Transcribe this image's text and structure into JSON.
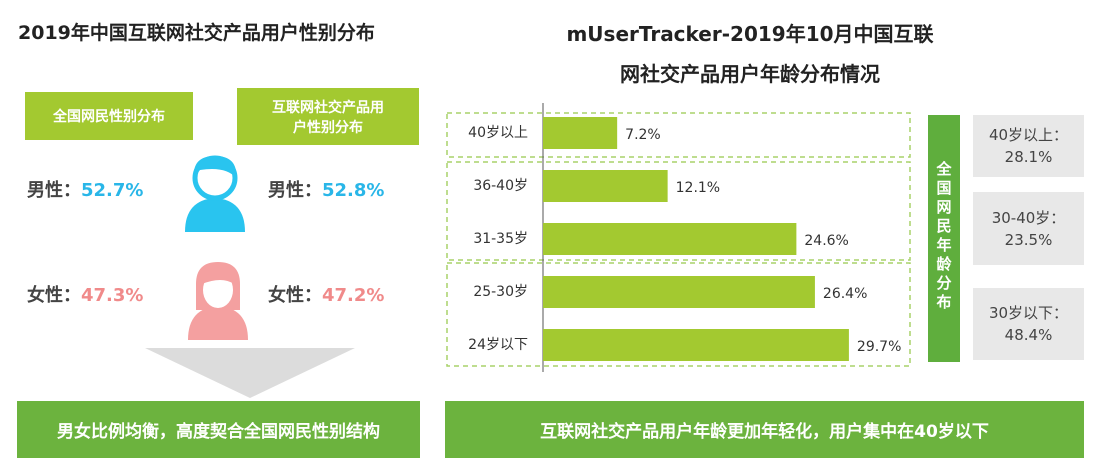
{
  "left": {
    "title": "2019年中国互联网社交产品用户性别分布",
    "headers": [
      "全国网民性别分布",
      "互联网社交产品用户性别分布"
    ],
    "male": {
      "label": "男性：",
      "values": [
        "52.7%",
        "52.8%"
      ]
    },
    "female": {
      "label": "女性：",
      "values": [
        "47.3%",
        "47.2%"
      ]
    },
    "conclusion": "男女比例均衡，高度契合全国网民性别结构"
  },
  "chart_data": {
    "type": "hbar",
    "title": "mUserTracker-2019年10月中国互联\n网社交产品用户年龄分布情况",
    "categories": [
      "40岁以上",
      "36-40岁",
      "31-35岁",
      "25-30岁",
      "24岁以下"
    ],
    "values": [
      7.2,
      12.1,
      24.6,
      26.4,
      29.7
    ],
    "value_labels": [
      "7.2%",
      "12.1%",
      "24.6%",
      "26.4%",
      "29.7%"
    ],
    "color": "#a3c930"
  },
  "right": {
    "side_label": "全国网民年龄分布",
    "boxes": [
      "40岁以上：28.1%",
      "30-40岁：23.5%",
      "30岁以下：48.4%"
    ],
    "conclusion": "互联网社交产品用户年龄更加年轻化，用户集中在40岁以下"
  }
}
